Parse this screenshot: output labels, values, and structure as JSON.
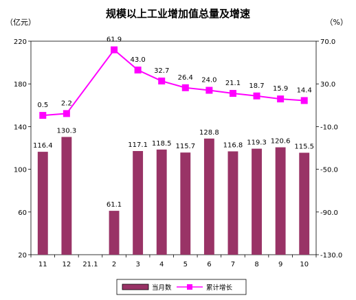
{
  "chart_data": {
    "type": "bar+line",
    "title": "规模以上工业增加值总量及增速",
    "left_unit": "（亿元）",
    "right_unit": "（%）",
    "categories": [
      "11",
      "12",
      "21.1",
      "2",
      "3",
      "4",
      "5",
      "6",
      "7",
      "8",
      "9",
      "10"
    ],
    "left_axis": {
      "ylim": [
        20,
        220
      ],
      "ticks": [
        "20",
        "60",
        "100",
        "140",
        "180",
        "220"
      ]
    },
    "right_axis": {
      "ylim": [
        -130,
        70
      ],
      "ticks": [
        "-130.0",
        "-90.0",
        "-50.0",
        "-10.0",
        "30.0",
        "70.0"
      ]
    },
    "series": [
      {
        "name": "当月数",
        "kind": "bar",
        "axis": "left",
        "color": "#993366",
        "values": [
          116.4,
          130.3,
          null,
          61.1,
          117.1,
          118.5,
          115.7,
          128.8,
          116.8,
          119.3,
          120.6,
          115.5
        ],
        "labels": [
          "116.4",
          "130.3",
          "",
          "61.1",
          "117.1",
          "118.5",
          "115.7",
          "128.8",
          "116.8",
          "119.3",
          "120.6",
          "115.5"
        ]
      },
      {
        "name": "累计增长",
        "kind": "line",
        "axis": "right",
        "color": "#FF00FF",
        "values": [
          0.5,
          2.2,
          null,
          61.9,
          43.0,
          32.7,
          26.4,
          24.0,
          21.1,
          18.7,
          15.9,
          14.4
        ],
        "labels": [
          "0.5",
          "2.2",
          "",
          "61.9",
          "43.0",
          "32.7",
          "26.4",
          "24.0",
          "21.1",
          "18.7",
          "15.9",
          "14.4"
        ]
      }
    ],
    "grid": false,
    "legend_position": "bottom"
  }
}
